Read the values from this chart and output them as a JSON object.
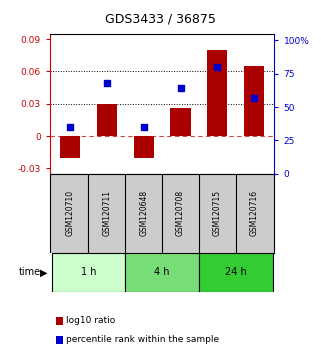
{
  "title": "GDS3433 / 36875",
  "samples": [
    "GSM120710",
    "GSM120711",
    "GSM120648",
    "GSM120708",
    "GSM120715",
    "GSM120716"
  ],
  "log10_ratio": [
    -0.02,
    0.03,
    -0.02,
    0.026,
    0.08,
    0.065
  ],
  "percentile_rank": [
    35,
    68,
    35,
    64,
    80,
    57
  ],
  "groups": [
    {
      "label": "1 h",
      "indices": [
        0,
        1
      ],
      "color": "#ccffcc"
    },
    {
      "label": "4 h",
      "indices": [
        2,
        3
      ],
      "color": "#77dd77"
    },
    {
      "label": "24 h",
      "indices": [
        4,
        5
      ],
      "color": "#33cc33"
    }
  ],
  "bar_color": "#aa0000",
  "dot_color": "#0000cc",
  "ylim_left": [
    -0.035,
    0.095
  ],
  "yticks_left": [
    -0.03,
    0,
    0.03,
    0.06,
    0.09
  ],
  "ytick_labels_left": [
    "-0.03",
    "0",
    "0.03",
    "0.06",
    "0.09"
  ],
  "ylim_right": [
    0,
    105
  ],
  "yticks_right": [
    0,
    25,
    50,
    75,
    100
  ],
  "ytick_labels_right": [
    "0",
    "25",
    "50",
    "75",
    "100%"
  ],
  "hlines": [
    0.03,
    0.06
  ],
  "hline_zero_color": "#cc4444",
  "bg_color": "#ffffff",
  "bar_width": 0.55,
  "legend_red": "log10 ratio",
  "legend_blue": "percentile rank within the sample",
  "time_label": "time"
}
